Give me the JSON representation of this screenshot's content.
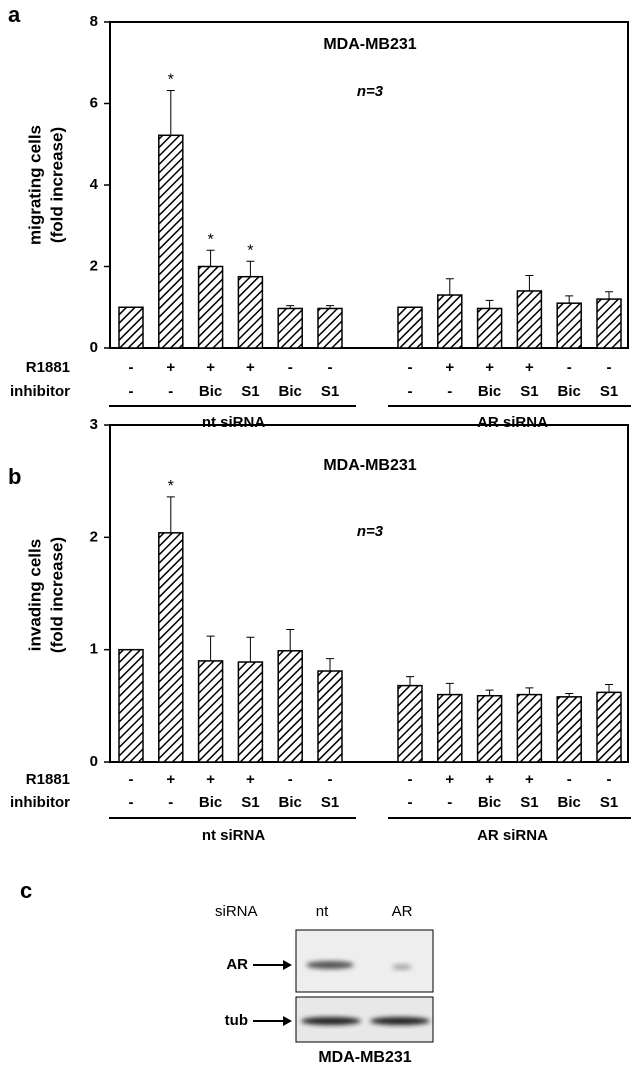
{
  "chart_data": [
    {
      "type": "bar",
      "panel": "a",
      "title": "MDA-MB231",
      "annotation": "n=3",
      "ylabel": [
        "migrating cells",
        "(fold increase)"
      ],
      "ylim": [
        0,
        8
      ],
      "yticks": [
        0,
        2,
        4,
        6,
        8
      ],
      "condition_rows": [
        {
          "label": "R1881",
          "values": [
            "-",
            "+",
            "+",
            "+",
            "-",
            "-"
          ]
        },
        {
          "label": "inhibitor",
          "values": [
            "-",
            "-",
            "Bic",
            "S1",
            "Bic",
            "S1"
          ]
        }
      ],
      "series": [
        {
          "name": "nt siRNA",
          "color": "#000000",
          "values": [
            1.0,
            5.22,
            2.0,
            1.75,
            0.97,
            0.97
          ],
          "errors": [
            null,
            1.1,
            0.4,
            0.38,
            0.07,
            0.07
          ],
          "significance": [
            null,
            "*",
            "*",
            "*",
            null,
            null
          ]
        },
        {
          "name": "AR siRNA",
          "color": "#000000",
          "values": [
            1.0,
            1.3,
            0.97,
            1.4,
            1.1,
            1.2
          ],
          "errors": [
            null,
            0.4,
            0.2,
            0.38,
            0.18,
            0.18
          ],
          "significance": [
            null,
            null,
            null,
            null,
            null,
            null
          ]
        }
      ]
    },
    {
      "type": "bar",
      "panel": "b",
      "title": "MDA-MB231",
      "annotation": "n=3",
      "ylabel": [
        "invading cells",
        "(fold increase)"
      ],
      "ylim": [
        0,
        3
      ],
      "yticks": [
        0,
        1,
        2,
        3
      ],
      "condition_rows": [
        {
          "label": "R1881",
          "values": [
            "-",
            "+",
            "+",
            "+",
            "-",
            "-"
          ]
        },
        {
          "label": "inhibitor",
          "values": [
            "-",
            "-",
            "Bic",
            "S1",
            "Bic",
            "S1"
          ]
        }
      ],
      "series": [
        {
          "name": "nt siRNA",
          "color": "#000000",
          "values": [
            1.0,
            2.04,
            0.9,
            0.89,
            0.99,
            0.81
          ],
          "errors": [
            null,
            0.32,
            0.22,
            0.22,
            0.19,
            0.11
          ],
          "significance": [
            null,
            "*",
            null,
            null,
            null,
            null
          ]
        },
        {
          "name": "AR siRNA",
          "color": "#000000",
          "values": [
            0.68,
            0.6,
            0.59,
            0.6,
            0.58,
            0.62
          ],
          "errors": [
            0.08,
            0.1,
            0.05,
            0.06,
            0.03,
            0.07
          ],
          "significance": [
            null,
            null,
            null,
            null,
            null,
            null
          ]
        }
      ]
    }
  ],
  "blot": {
    "panel": "c",
    "header_label": "siRNA",
    "lanes": [
      "nt",
      "AR"
    ],
    "bands": [
      "AR",
      "tub"
    ],
    "caption": "MDA-MB231"
  }
}
